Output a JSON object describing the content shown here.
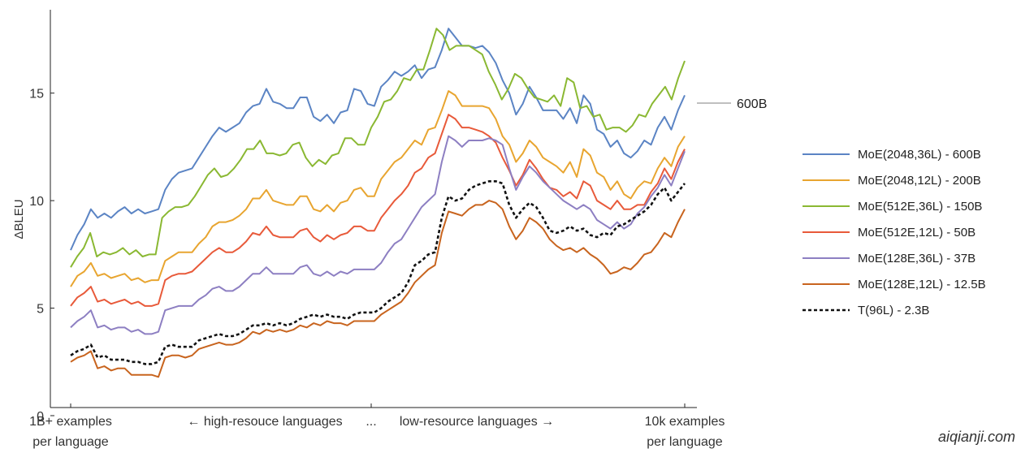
{
  "chart_data": {
    "type": "line",
    "title": "",
    "ylabel": "ΔBLEU",
    "xlabel": "",
    "ylim": [
      0,
      18.5
    ],
    "yticks": [
      0,
      5,
      10,
      15
    ],
    "legend_position": "right",
    "grid": false,
    "x_labels": {
      "left_line1": "1B+ examples",
      "left_line2": "per language",
      "middle_left": "← high-resouce languages",
      "middle_ellipsis": "...",
      "middle_right": "low-resource languages →",
      "right_line1": "10k examples",
      "right_line2": "per language"
    },
    "annotation": {
      "text": "600B",
      "y": 14.9
    },
    "series": [
      {
        "name": "MoE(2048,36L) - 600B",
        "color": "#5b84c4",
        "dash": "",
        "values": [
          7.7,
          8.4,
          8.9,
          9.6,
          9.2,
          9.4,
          9.2,
          9.5,
          9.7,
          9.4,
          9.6,
          9.4,
          9.5,
          9.6,
          10.5,
          11.0,
          11.3,
          11.4,
          11.5,
          12.0,
          12.5,
          13.0,
          13.4,
          13.2,
          13.4,
          13.6,
          14.1,
          14.4,
          14.5,
          15.2,
          14.6,
          14.5,
          14.3,
          14.3,
          14.8,
          14.8,
          13.9,
          13.7,
          14.0,
          13.6,
          14.1,
          14.2,
          15.2,
          15.1,
          14.5,
          14.4,
          15.3,
          15.6,
          16.0,
          15.8,
          16.0,
          16.3,
          15.7,
          16.1,
          16.2,
          17.0,
          18.0,
          17.6,
          17.2,
          17.2,
          17.1,
          17.2,
          16.9,
          16.4,
          15.6,
          15.0,
          14.0,
          14.5,
          15.3,
          14.8,
          14.2,
          14.2,
          14.2,
          13.8,
          14.3,
          13.6,
          14.9,
          14.5,
          13.3,
          13.1,
          12.5,
          12.8,
          12.2,
          12.0,
          12.3,
          12.8,
          12.6,
          13.4,
          13.9,
          13.3,
          14.2,
          14.9
        ]
      },
      {
        "name": "MoE(2048,12L) - 200B",
        "color": "#e8a530",
        "dash": "",
        "values": [
          6.0,
          6.5,
          6.7,
          7.1,
          6.5,
          6.6,
          6.4,
          6.5,
          6.6,
          6.3,
          6.4,
          6.2,
          6.3,
          6.3,
          7.2,
          7.4,
          7.6,
          7.6,
          7.6,
          8.0,
          8.3,
          8.8,
          9.0,
          9.0,
          9.1,
          9.3,
          9.6,
          10.1,
          10.1,
          10.5,
          10.0,
          9.9,
          9.8,
          9.8,
          10.2,
          10.2,
          9.6,
          9.5,
          9.8,
          9.5,
          9.9,
          10.0,
          10.5,
          10.6,
          10.2,
          10.2,
          11.0,
          11.4,
          11.8,
          12.0,
          12.4,
          12.8,
          12.6,
          13.3,
          13.4,
          14.2,
          15.1,
          14.9,
          14.4,
          14.4,
          14.4,
          14.4,
          14.3,
          13.8,
          13.0,
          12.6,
          11.8,
          12.2,
          12.8,
          12.5,
          12.0,
          11.8,
          11.6,
          11.3,
          11.8,
          11.1,
          12.4,
          12.1,
          11.3,
          11.1,
          10.5,
          10.9,
          10.3,
          10.1,
          10.6,
          10.9,
          10.8,
          11.5,
          12.0,
          11.6,
          12.5,
          13.0
        ]
      },
      {
        "name": "MoE(512E,36L) - 150B",
        "color": "#8ab832",
        "dash": "",
        "values": [
          6.9,
          7.4,
          7.8,
          8.5,
          7.4,
          7.6,
          7.5,
          7.6,
          7.8,
          7.5,
          7.7,
          7.4,
          7.5,
          7.5,
          9.2,
          9.5,
          9.7,
          9.7,
          9.8,
          10.2,
          10.7,
          11.2,
          11.5,
          11.1,
          11.2,
          11.5,
          11.9,
          12.4,
          12.4,
          12.8,
          12.2,
          12.2,
          12.1,
          12.2,
          12.6,
          12.7,
          12.0,
          11.6,
          11.9,
          11.7,
          12.1,
          12.2,
          12.9,
          12.9,
          12.6,
          12.6,
          13.4,
          13.9,
          14.6,
          14.7,
          15.1,
          15.7,
          15.6,
          16.1,
          16.1,
          17.0,
          18.0,
          17.7,
          17.0,
          17.2,
          17.2,
          17.2,
          17.0,
          16.8,
          16.0,
          15.4,
          14.7,
          15.2,
          15.9,
          15.7,
          15.2,
          14.8,
          14.7,
          14.6,
          14.9,
          14.4,
          15.7,
          15.5,
          14.3,
          14.4,
          13.9,
          14.0,
          13.3,
          13.4,
          13.4,
          13.2,
          13.5,
          14.0,
          13.9,
          14.5,
          14.9,
          15.3,
          14.7,
          15.7,
          16.5
        ]
      },
      {
        "name": "MoE(512E,12L) - 50B",
        "color": "#e85a3a",
        "dash": "",
        "values": [
          5.1,
          5.5,
          5.7,
          6.0,
          5.3,
          5.4,
          5.2,
          5.3,
          5.4,
          5.2,
          5.3,
          5.1,
          5.1,
          5.2,
          6.3,
          6.5,
          6.6,
          6.6,
          6.7,
          7.0,
          7.3,
          7.6,
          7.8,
          7.6,
          7.6,
          7.8,
          8.1,
          8.5,
          8.4,
          8.8,
          8.4,
          8.3,
          8.3,
          8.3,
          8.6,
          8.7,
          8.3,
          8.1,
          8.4,
          8.2,
          8.4,
          8.5,
          8.8,
          8.8,
          8.6,
          8.6,
          9.2,
          9.6,
          10.0,
          10.3,
          10.7,
          11.3,
          11.5,
          12.0,
          12.2,
          13.1,
          14.0,
          13.8,
          13.4,
          13.4,
          13.3,
          13.2,
          13.0,
          12.7,
          12.0,
          11.4,
          10.7,
          11.2,
          11.9,
          11.5,
          11.0,
          10.6,
          10.5,
          10.2,
          10.4,
          10.1,
          10.9,
          10.7,
          10.0,
          9.8,
          9.6,
          10.0,
          9.6,
          9.6,
          9.8,
          9.8,
          10.4,
          10.8,
          11.5,
          11.0,
          11.8,
          12.4
        ]
      },
      {
        "name": "MoE(128E,36L) - 37B",
        "color": "#8d7fc2",
        "dash": "",
        "values": [
          4.1,
          4.4,
          4.6,
          4.9,
          4.1,
          4.2,
          4.0,
          4.1,
          4.1,
          3.9,
          4.0,
          3.8,
          3.8,
          3.9,
          4.9,
          5.0,
          5.1,
          5.1,
          5.1,
          5.4,
          5.6,
          5.9,
          6.0,
          5.8,
          5.8,
          6.0,
          6.3,
          6.6,
          6.6,
          6.9,
          6.6,
          6.6,
          6.6,
          6.6,
          6.9,
          7.0,
          6.6,
          6.5,
          6.7,
          6.5,
          6.7,
          6.6,
          6.8,
          6.8,
          6.8,
          6.8,
          7.1,
          7.6,
          8.0,
          8.2,
          8.7,
          9.2,
          9.7,
          10.0,
          10.3,
          11.8,
          13.0,
          12.8,
          12.5,
          12.8,
          12.8,
          12.8,
          12.9,
          12.8,
          12.6,
          11.5,
          10.5,
          11.1,
          11.6,
          11.3,
          10.9,
          10.6,
          10.3,
          10.0,
          9.8,
          9.6,
          9.8,
          9.6,
          9.1,
          8.9,
          8.7,
          9.0,
          8.7,
          8.9,
          9.4,
          9.7,
          10.2,
          10.6,
          11.2,
          10.7,
          11.5,
          12.3
        ]
      },
      {
        "name": "MoE(128E,12L) - 12.5B",
        "color": "#c8641e",
        "dash": "",
        "values": [
          2.5,
          2.7,
          2.8,
          3.0,
          2.2,
          2.3,
          2.1,
          2.2,
          2.2,
          1.9,
          1.9,
          1.9,
          1.9,
          1.8,
          2.7,
          2.8,
          2.8,
          2.7,
          2.8,
          3.1,
          3.2,
          3.3,
          3.4,
          3.3,
          3.3,
          3.4,
          3.6,
          3.9,
          3.8,
          4.0,
          3.9,
          4.0,
          3.9,
          4.0,
          4.2,
          4.1,
          4.3,
          4.2,
          4.4,
          4.3,
          4.3,
          4.2,
          4.4,
          4.4,
          4.4,
          4.4,
          4.7,
          4.9,
          5.1,
          5.3,
          5.7,
          6.2,
          6.5,
          6.8,
          7.0,
          8.5,
          9.5,
          9.4,
          9.3,
          9.6,
          9.8,
          9.8,
          10.0,
          9.9,
          9.6,
          8.8,
          8.2,
          8.6,
          9.2,
          9.0,
          8.7,
          8.2,
          7.9,
          7.7,
          7.8,
          7.6,
          7.8,
          7.5,
          7.3,
          7.0,
          6.6,
          6.7,
          6.9,
          6.8,
          7.1,
          7.5,
          7.6,
          8.0,
          8.5,
          8.3,
          9.0,
          9.6
        ]
      },
      {
        "name": "T(96L) - 2.3B",
        "color": "#111111",
        "dash": "4,3",
        "values": [
          2.8,
          3.0,
          3.1,
          3.3,
          2.7,
          2.8,
          2.6,
          2.6,
          2.6,
          2.5,
          2.5,
          2.4,
          2.4,
          2.5,
          3.2,
          3.3,
          3.2,
          3.2,
          3.2,
          3.5,
          3.6,
          3.7,
          3.8,
          3.7,
          3.7,
          3.8,
          4.0,
          4.2,
          4.2,
          4.3,
          4.2,
          4.3,
          4.2,
          4.3,
          4.5,
          4.6,
          4.7,
          4.6,
          4.7,
          4.6,
          4.6,
          4.5,
          4.7,
          4.8,
          4.8,
          4.8,
          5.0,
          5.3,
          5.5,
          5.7,
          6.2,
          7.0,
          7.2,
          7.5,
          7.6,
          9.2,
          10.2,
          10.0,
          10.1,
          10.5,
          10.7,
          10.8,
          10.9,
          10.9,
          10.8,
          9.8,
          9.2,
          9.6,
          9.9,
          9.7,
          9.2,
          8.6,
          8.5,
          8.6,
          8.8,
          8.6,
          8.7,
          8.4,
          8.3,
          8.5,
          8.4,
          8.8,
          8.9,
          9.1,
          9.3,
          9.5,
          9.8,
          10.3,
          10.6,
          10.0,
          10.4,
          10.8
        ]
      }
    ]
  },
  "watermark": "aiqianji.com"
}
